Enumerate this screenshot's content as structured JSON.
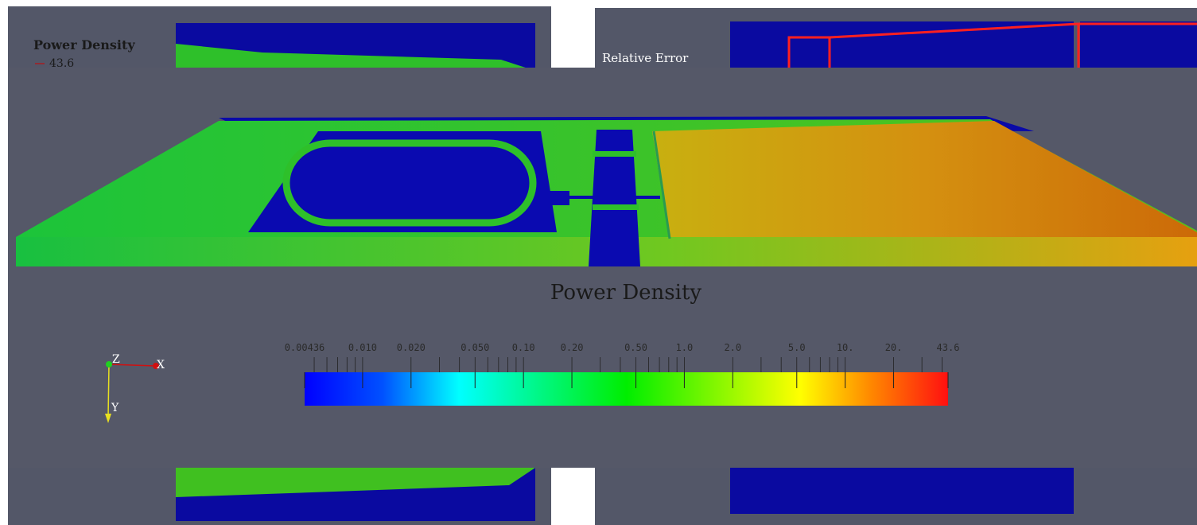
{
  "panels": {
    "top_left": {
      "legend_title": "Power Density",
      "legend_value": 43.6
    },
    "top_right": {
      "legend_title": "Relative Error"
    }
  },
  "main_view": {
    "title": "Power Density",
    "colorbar": {
      "scale": "log",
      "range": [
        0.00436,
        43.6
      ],
      "ticks": [
        0.00436,
        {
          "value": 0.01,
          "label": "0.010"
        },
        {
          "value": 0.02,
          "label": "0.020"
        },
        {
          "value": 0.05,
          "label": "0.050"
        },
        {
          "value": 0.1,
          "label": "0.10"
        },
        {
          "value": 0.2,
          "label": "0.20"
        },
        {
          "value": 0.5,
          "label": "0.50"
        },
        {
          "value": 1,
          "label": "1.0"
        },
        {
          "value": 2,
          "label": "2.0"
        },
        {
          "value": 5,
          "label": "5.0"
        },
        {
          "value": 10,
          "label": "10."
        },
        {
          "value": 20,
          "label": "20."
        },
        43.6
      ]
    },
    "axes": {
      "z": "Z",
      "x": "X",
      "y": "Y"
    }
  }
}
